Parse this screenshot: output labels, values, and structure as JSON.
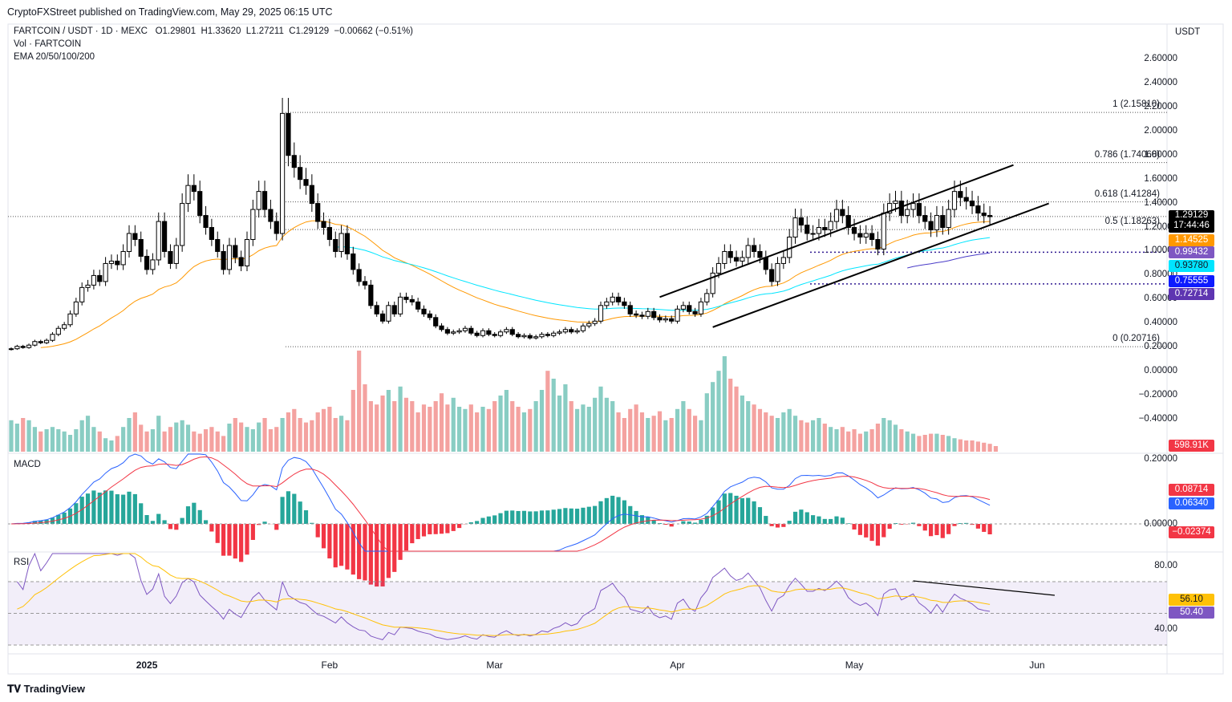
{
  "header": {
    "published": "CryptoFXStreet published on TradingView.com, May 29, 2025 06:15 UTC"
  },
  "legend": {
    "symbol_line": "FARTCOIN / USDT · 1D · MEXC",
    "open": "O1.29801",
    "high": "H1.33620",
    "low": "L1.27211",
    "close": "C1.29129",
    "change": "−0.00662 (−0.51%)",
    "volume_label": "Vol · FARTCOIN",
    "ema_label": "EMA 20/50/100/200"
  },
  "currency": "USDT",
  "price_axis": [
    "2.60000",
    "2.40000",
    "2.20000",
    "2.00000",
    "1.80000",
    "1.60000",
    "1.40000",
    "1.20000",
    "1.00000",
    "0.80000",
    "0.60000",
    "0.40000",
    "0.20000",
    "0.00000",
    "−0.20000",
    "−0.40000"
  ],
  "badges": {
    "last_price": "1.29129",
    "countdown": "17:44:46",
    "ema20": "1.14525",
    "ema_level": "0.99432",
    "ema100": "0.93780",
    "ema200": "0.75555",
    "ema_extra": "0.72714",
    "volume": "598.91K"
  },
  "fib_levels": [
    {
      "label": "1 (2.15810)",
      "price": 2.1581
    },
    {
      "label": "0.786 (1.74060)",
      "price": 1.7406
    },
    {
      "label": "0.618 (1.41284)",
      "price": 1.41284
    },
    {
      "label": "0.5 (1.18263)",
      "price": 1.18263
    },
    {
      "label": "0 (0.20716)",
      "price": 0.20716
    }
  ],
  "macd": {
    "label": "MACD",
    "axis": [
      "0.20000",
      "0.00000"
    ],
    "macd_value": "0.08714",
    "signal_value": "0.06340",
    "hist_value": "−0.02374"
  },
  "rsi": {
    "label": "RSI",
    "axis": [
      "80.00",
      "40.00"
    ],
    "rsi_value": "56.10",
    "ma_value": "50.40"
  },
  "x_axis": [
    {
      "label": "2025",
      "day": 23
    },
    {
      "label": "Feb",
      "day": 54
    },
    {
      "label": "Mar",
      "day": 82
    },
    {
      "label": "Apr",
      "day": 113
    },
    {
      "label": "May",
      "day": 143
    },
    {
      "label": "Jun",
      "day": 174
    }
  ],
  "colors": {
    "up": "#ffffff",
    "down": "#000000",
    "vol_up": "#89cdc3",
    "vol_down": "#f4a2a0",
    "ema20": "#ff9800",
    "ema100": "#00e5ff",
    "ema200": "#4a3cc8",
    "macd": "#2962ff",
    "signal": "#f23645",
    "rsi": "#7e57c2",
    "rsi_ma": "#ffc107"
  },
  "chart_data": {
    "type": "candlestick",
    "title": "FARTCOIN / USDT · 1D · MEXC",
    "xlabel": "",
    "ylabel": "USDT",
    "ylim": [
      -0.5,
      2.75
    ],
    "start_day": 0,
    "closes": [
      0.19,
      0.21,
      0.2,
      0.22,
      0.25,
      0.24,
      0.26,
      0.31,
      0.36,
      0.39,
      0.48,
      0.58,
      0.7,
      0.72,
      0.8,
      0.75,
      0.9,
      0.92,
      0.89,
      1.0,
      1.15,
      1.1,
      0.96,
      0.85,
      0.93,
      1.25,
      1.0,
      0.9,
      1.05,
      1.4,
      1.55,
      1.5,
      1.3,
      1.2,
      1.1,
      1.0,
      0.85,
      1.05,
      0.95,
      0.88,
      1.1,
      1.35,
      1.5,
      1.35,
      1.25,
      1.15,
      2.15,
      1.8,
      1.7,
      1.6,
      1.55,
      1.4,
      1.25,
      1.2,
      1.1,
      1.0,
      1.15,
      0.98,
      0.85,
      0.75,
      0.72,
      0.55,
      0.48,
      0.42,
      0.55,
      0.48,
      0.62,
      0.6,
      0.58,
      0.52,
      0.48,
      0.45,
      0.38,
      0.35,
      0.32,
      0.33,
      0.34,
      0.36,
      0.32,
      0.3,
      0.34,
      0.31,
      0.3,
      0.33,
      0.35,
      0.31,
      0.29,
      0.3,
      0.28,
      0.29,
      0.31,
      0.3,
      0.32,
      0.33,
      0.35,
      0.33,
      0.34,
      0.38,
      0.4,
      0.42,
      0.55,
      0.58,
      0.62,
      0.58,
      0.55,
      0.48,
      0.47,
      0.46,
      0.5,
      0.45,
      0.43,
      0.44,
      0.42,
      0.52,
      0.55,
      0.5,
      0.48,
      0.58,
      0.65,
      0.82,
      0.9,
      1.0,
      0.95,
      0.92,
      0.95,
      1.05,
      1.0,
      0.95,
      0.85,
      0.75,
      0.9,
      0.95,
      1.12,
      1.28,
      1.22,
      1.15,
      1.15,
      1.2,
      1.18,
      1.25,
      1.35,
      1.3,
      1.2,
      1.15,
      1.12,
      1.15,
      1.1,
      1.02,
      1.32,
      1.4,
      1.42,
      1.3,
      1.35,
      1.4,
      1.3,
      1.25,
      1.18,
      1.3,
      1.2,
      1.35,
      1.5,
      1.45,
      1.42,
      1.38,
      1.32,
      1.3,
      1.29
    ],
    "volumes": [
      0.28,
      0.25,
      0.3,
      0.28,
      0.22,
      0.18,
      0.2,
      0.22,
      0.2,
      0.18,
      0.15,
      0.2,
      0.28,
      0.32,
      0.22,
      0.18,
      0.12,
      0.1,
      0.14,
      0.22,
      0.3,
      0.35,
      0.24,
      0.18,
      0.2,
      0.32,
      0.18,
      0.22,
      0.26,
      0.28,
      0.24,
      0.18,
      0.16,
      0.2,
      0.22,
      0.18,
      0.14,
      0.25,
      0.3,
      0.26,
      0.22,
      0.2,
      0.26,
      0.3,
      0.2,
      0.22,
      0.3,
      0.35,
      0.38,
      0.3,
      0.26,
      0.28,
      0.35,
      0.38,
      0.4,
      0.3,
      0.32,
      0.28,
      0.55,
      0.9,
      0.6,
      0.45,
      0.42,
      0.5,
      0.55,
      0.45,
      0.58,
      0.48,
      0.45,
      0.35,
      0.42,
      0.4,
      0.45,
      0.52,
      0.42,
      0.48,
      0.4,
      0.38,
      0.42,
      0.35,
      0.4,
      0.38,
      0.45,
      0.5,
      0.55,
      0.45,
      0.4,
      0.35,
      0.38,
      0.45,
      0.55,
      0.72,
      0.65,
      0.5,
      0.6,
      0.45,
      0.38,
      0.42,
      0.4,
      0.48,
      0.58,
      0.48,
      0.45,
      0.35,
      0.3,
      0.38,
      0.42,
      0.35,
      0.3,
      0.32,
      0.36,
      0.28,
      0.3,
      0.38,
      0.45,
      0.38,
      0.32,
      0.28,
      0.52,
      0.62,
      0.72,
      0.85,
      0.65,
      0.58,
      0.5,
      0.45,
      0.42,
      0.38,
      0.35,
      0.32,
      0.3,
      0.35,
      0.38,
      0.32,
      0.28,
      0.26,
      0.28,
      0.3,
      0.25,
      0.22,
      0.2,
      0.22,
      0.18,
      0.2,
      0.16,
      0.18,
      0.2,
      0.25,
      0.3,
      0.28,
      0.24,
      0.2,
      0.18,
      0.16,
      0.14,
      0.15,
      0.16,
      0.16,
      0.15,
      0.14,
      0.12,
      0.11,
      0.1,
      0.1,
      0.09,
      0.08,
      0.07,
      0.05
    ]
  }
}
